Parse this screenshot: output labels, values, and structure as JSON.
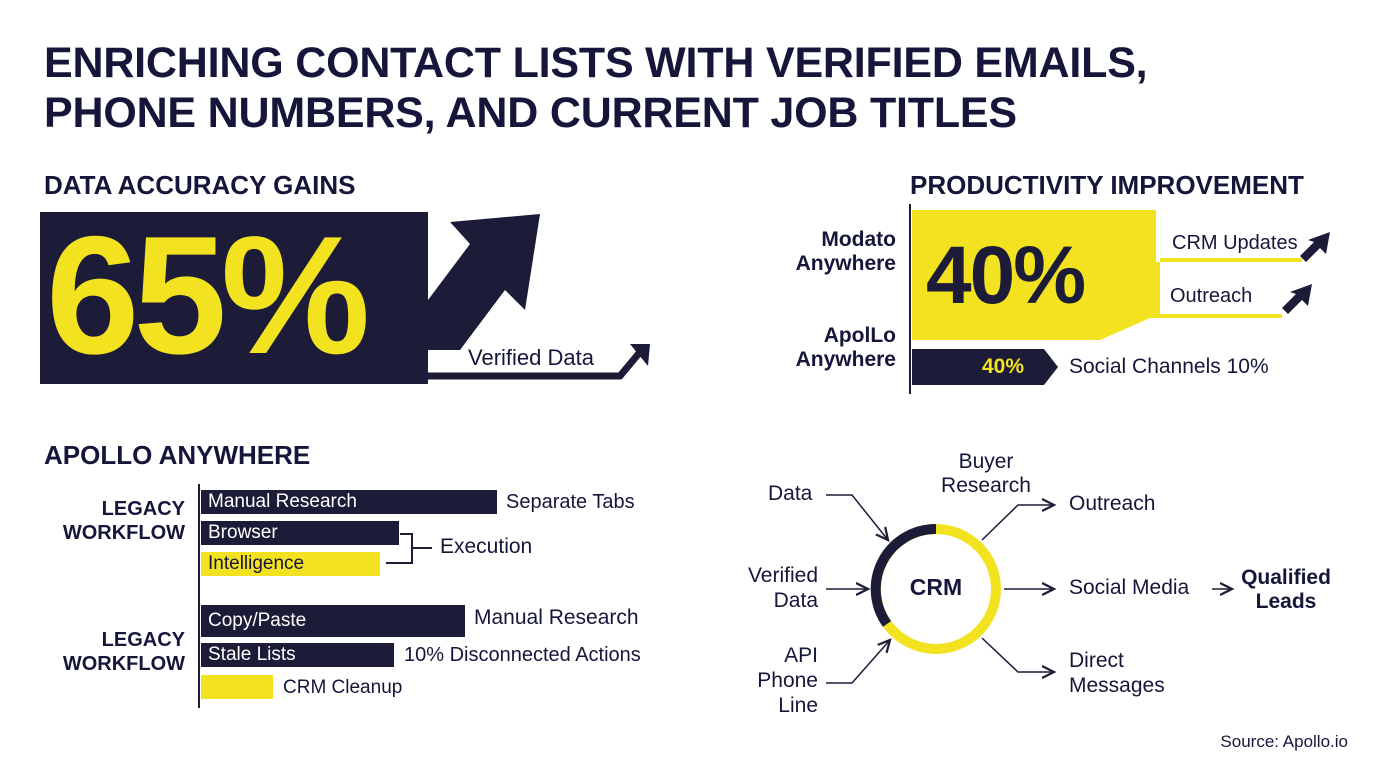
{
  "title": {
    "line1": "ENRICHING CONTACT LISTS WITH VERIFIED EMAILS,",
    "line2": "PHONE NUMBERS, AND CURRENT JOB TITLES"
  },
  "accuracy": {
    "heading": "DATA ACCURACY GAINS",
    "value": "65%",
    "label": "Verified Data"
  },
  "productivity": {
    "heading": "PRODUCTIVITY IMPROVEMENT",
    "rows": [
      {
        "label_line1": "Modato",
        "label_line2": "Anywhere",
        "value": "40%"
      },
      {
        "label_line1": "ApolLo",
        "label_line2": "Anywhere",
        "value": "40%"
      }
    ],
    "outputs": [
      "CRM Updates",
      "Outreach",
      "Social Channels 10%"
    ]
  },
  "apollo": {
    "heading": "APOLLO ANYWHERE",
    "groups": [
      {
        "label_line1": "LEGACY",
        "label_line2": "WORKFLOW",
        "bars": [
          {
            "label": "Manual Research",
            "highlight": false
          },
          {
            "label": "Browser",
            "highlight": false
          },
          {
            "label": "Intelligence",
            "highlight": true
          }
        ],
        "notes": [
          "Separate Tabs",
          "Execution"
        ]
      },
      {
        "label_line1": "LEGACY",
        "label_line2": "WORKFLOW",
        "bars": [
          {
            "label": "Copy/Paste",
            "highlight": false
          },
          {
            "label": "Stale Lists",
            "highlight": false
          },
          {
            "label": "",
            "highlight": true
          }
        ],
        "notes": [
          "Manual Research",
          "10% Disconnected Actions",
          "CRM Cleanup"
        ]
      }
    ]
  },
  "flow": {
    "center": "CRM",
    "inputs": [
      {
        "line1": "Data",
        "line2": "",
        "line3": ""
      },
      {
        "line1": "Verified",
        "line2": "Data",
        "line3": ""
      },
      {
        "line1": "API",
        "line2": "Phone",
        "line3": "Line"
      }
    ],
    "top": {
      "line1": "Buyer",
      "line2": "Research"
    },
    "outputs": [
      {
        "line1": "Outreach",
        "line2": ""
      },
      {
        "line1": "Social Media",
        "line2": ""
      },
      {
        "line1": "Direct",
        "line2": "Messages"
      }
    ],
    "result": {
      "line1": "Qualified",
      "line2": "Leads"
    }
  },
  "source": "Source: Apollo.io",
  "colors": {
    "navy": "#1c1c38",
    "yellow": "#f2e21f",
    "white": "#ffffff"
  }
}
